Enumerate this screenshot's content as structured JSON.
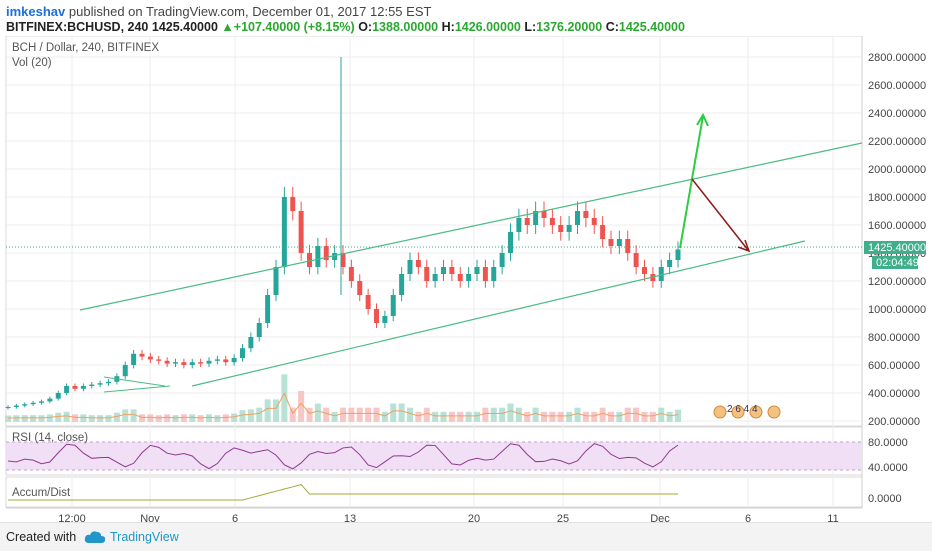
{
  "header": {
    "author": "imkeshav",
    "published": "published on TradingView.com, December 01, 2017 12:55 EST",
    "symbol": "BITFINEX:BCHUSD, 240",
    "last": "1425.40000",
    "change": "+107.40000 (+8.15%)",
    "open_label": "O:",
    "open": "1388.00000",
    "high_label": "H:",
    "high": "1426.00000",
    "low_label": "L:",
    "low": "1376.20000",
    "close_label": "C:",
    "close": "1425.40000"
  },
  "pane_titles": {
    "main": "BCH / Dollar, 240, BITFINEX",
    "vol": "Vol (20)",
    "rsi": "RSI (14, close)",
    "accum": "Accum/Dist"
  },
  "price_scale": [
    "2800.00000",
    "2600.00000",
    "2400.00000",
    "2200.00000",
    "2000.00000",
    "1800.00000",
    "1600.00000",
    "1400.00000",
    "1200.00000",
    "1000.00000",
    "800.00000",
    "600.00000",
    "400.00000",
    "200.00000"
  ],
  "price_badge": "1425.40000",
  "time_badge": "02:04:49",
  "rsi_scale": [
    "80.0000",
    "40.0000"
  ],
  "accum_scale": [
    "0.0000"
  ],
  "time_axis": [
    "12:00",
    "Nov",
    "6",
    "13",
    "20",
    "25",
    "Dec",
    "6",
    "11"
  ],
  "events_label": "2 6 4 4",
  "footer": {
    "created_with": "Created with",
    "brand": "TradingView"
  },
  "chart_data": {
    "type": "candlestick",
    "title": "BCH / Dollar, 240, BITFINEX",
    "ylim": [
      200,
      2800
    ],
    "last_price": 1425.4,
    "candles_close_approx": [
      300,
      310,
      320,
      330,
      340,
      360,
      400,
      450,
      430,
      450,
      460,
      470,
      480,
      520,
      600,
      680,
      660,
      640,
      630,
      610,
      620,
      600,
      620,
      610,
      630,
      640,
      620,
      650,
      720,
      800,
      900,
      1100,
      1300,
      1800,
      1700,
      1400,
      1300,
      1450,
      1350,
      1400,
      1300,
      1200,
      1100,
      1000,
      900,
      950,
      1100,
      1250,
      1350,
      1300,
      1200,
      1250,
      1300,
      1250,
      1200,
      1250,
      1300,
      1200,
      1300,
      1400,
      1550,
      1650,
      1600,
      1700,
      1650,
      1600,
      1550,
      1600,
      1700,
      1650,
      1600,
      1500,
      1450,
      1500,
      1400,
      1300,
      1250,
      1200,
      1300,
      1350,
      1425.4
    ],
    "channel": "ascending parallel channel",
    "annotations": [
      "green up arrow toward ~2400",
      "dark red down arrow toward ~1450"
    ]
  },
  "colors": {
    "up": "#26a69a",
    "down": "#ef5350",
    "channel": "#4cbb86",
    "up_arrow": "#2ecc40",
    "down_arrow": "#8b1a1a",
    "rsi_line": "#8e3a8e",
    "rsi_fill": "#f1e0f5",
    "accum_line": "#a4a838"
  }
}
